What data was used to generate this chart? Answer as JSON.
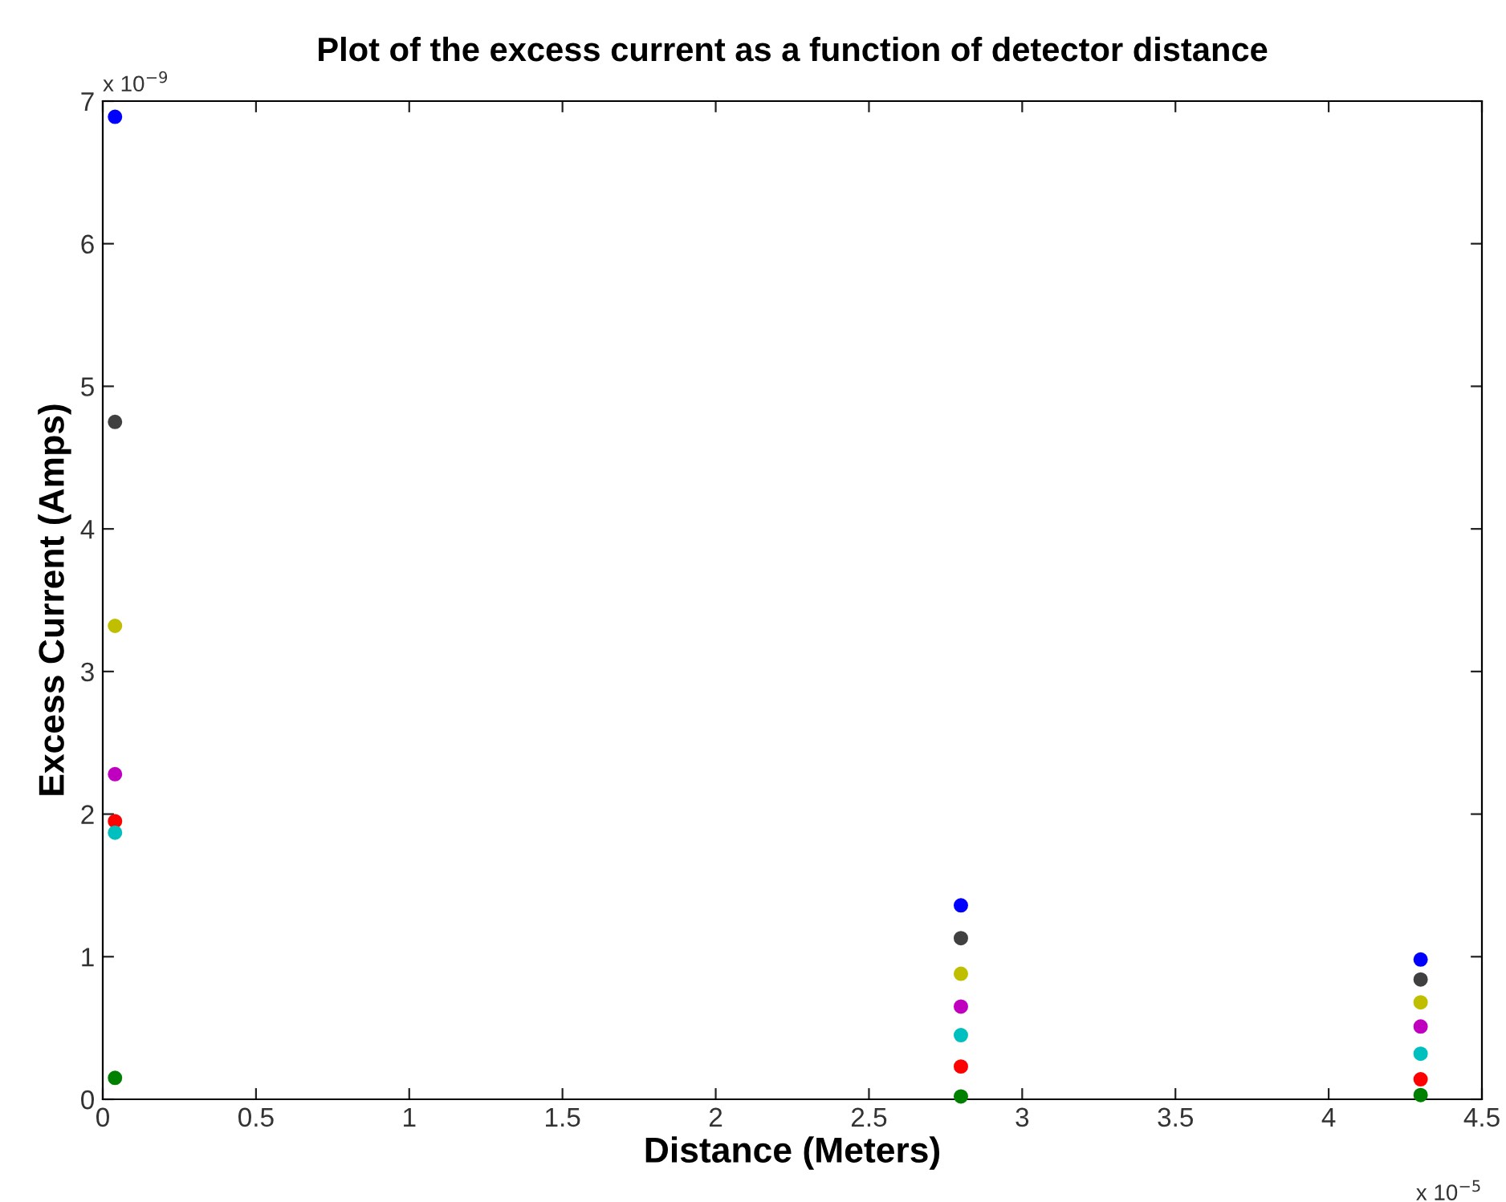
{
  "chart_data": {
    "type": "scatter",
    "title": "Plot of the excess current as a function of detector distance",
    "xlabel": "Distance (Meters)",
    "ylabel": "Excess Current (Amps)",
    "x": [
      0.04,
      2.8,
      4.3
    ],
    "series": [
      {
        "color": "#0000ff",
        "values": [
          6.89,
          1.36,
          0.98
        ]
      },
      {
        "color": "#404040",
        "values": [
          4.75,
          1.13,
          0.84
        ]
      },
      {
        "color": "#bfbf00",
        "values": [
          3.32,
          0.88,
          0.68
        ]
      },
      {
        "color": "#bf00bf",
        "values": [
          2.28,
          0.65,
          0.51
        ]
      },
      {
        "color": "#ff0000",
        "values": [
          1.95,
          0.23,
          0.14
        ]
      },
      {
        "color": "#00bfbf",
        "values": [
          1.87,
          0.45,
          0.32
        ]
      },
      {
        "color": "#008000",
        "values": [
          0.15,
          0.02,
          0.03
        ]
      }
    ],
    "xlim": [
      0,
      4.5
    ],
    "xticks": [
      0,
      0.5,
      1,
      1.5,
      2,
      2.5,
      3,
      3.5,
      4,
      4.5
    ],
    "ylim": [
      0,
      7
    ],
    "yticks": [
      0,
      1,
      2,
      3,
      4,
      5,
      6,
      7
    ],
    "annotations": [
      "x 10$^{−9}$",
      "x 10$^{−5}$"
    ],
    "marker": "circle",
    "grid": false,
    "legend": false
  }
}
